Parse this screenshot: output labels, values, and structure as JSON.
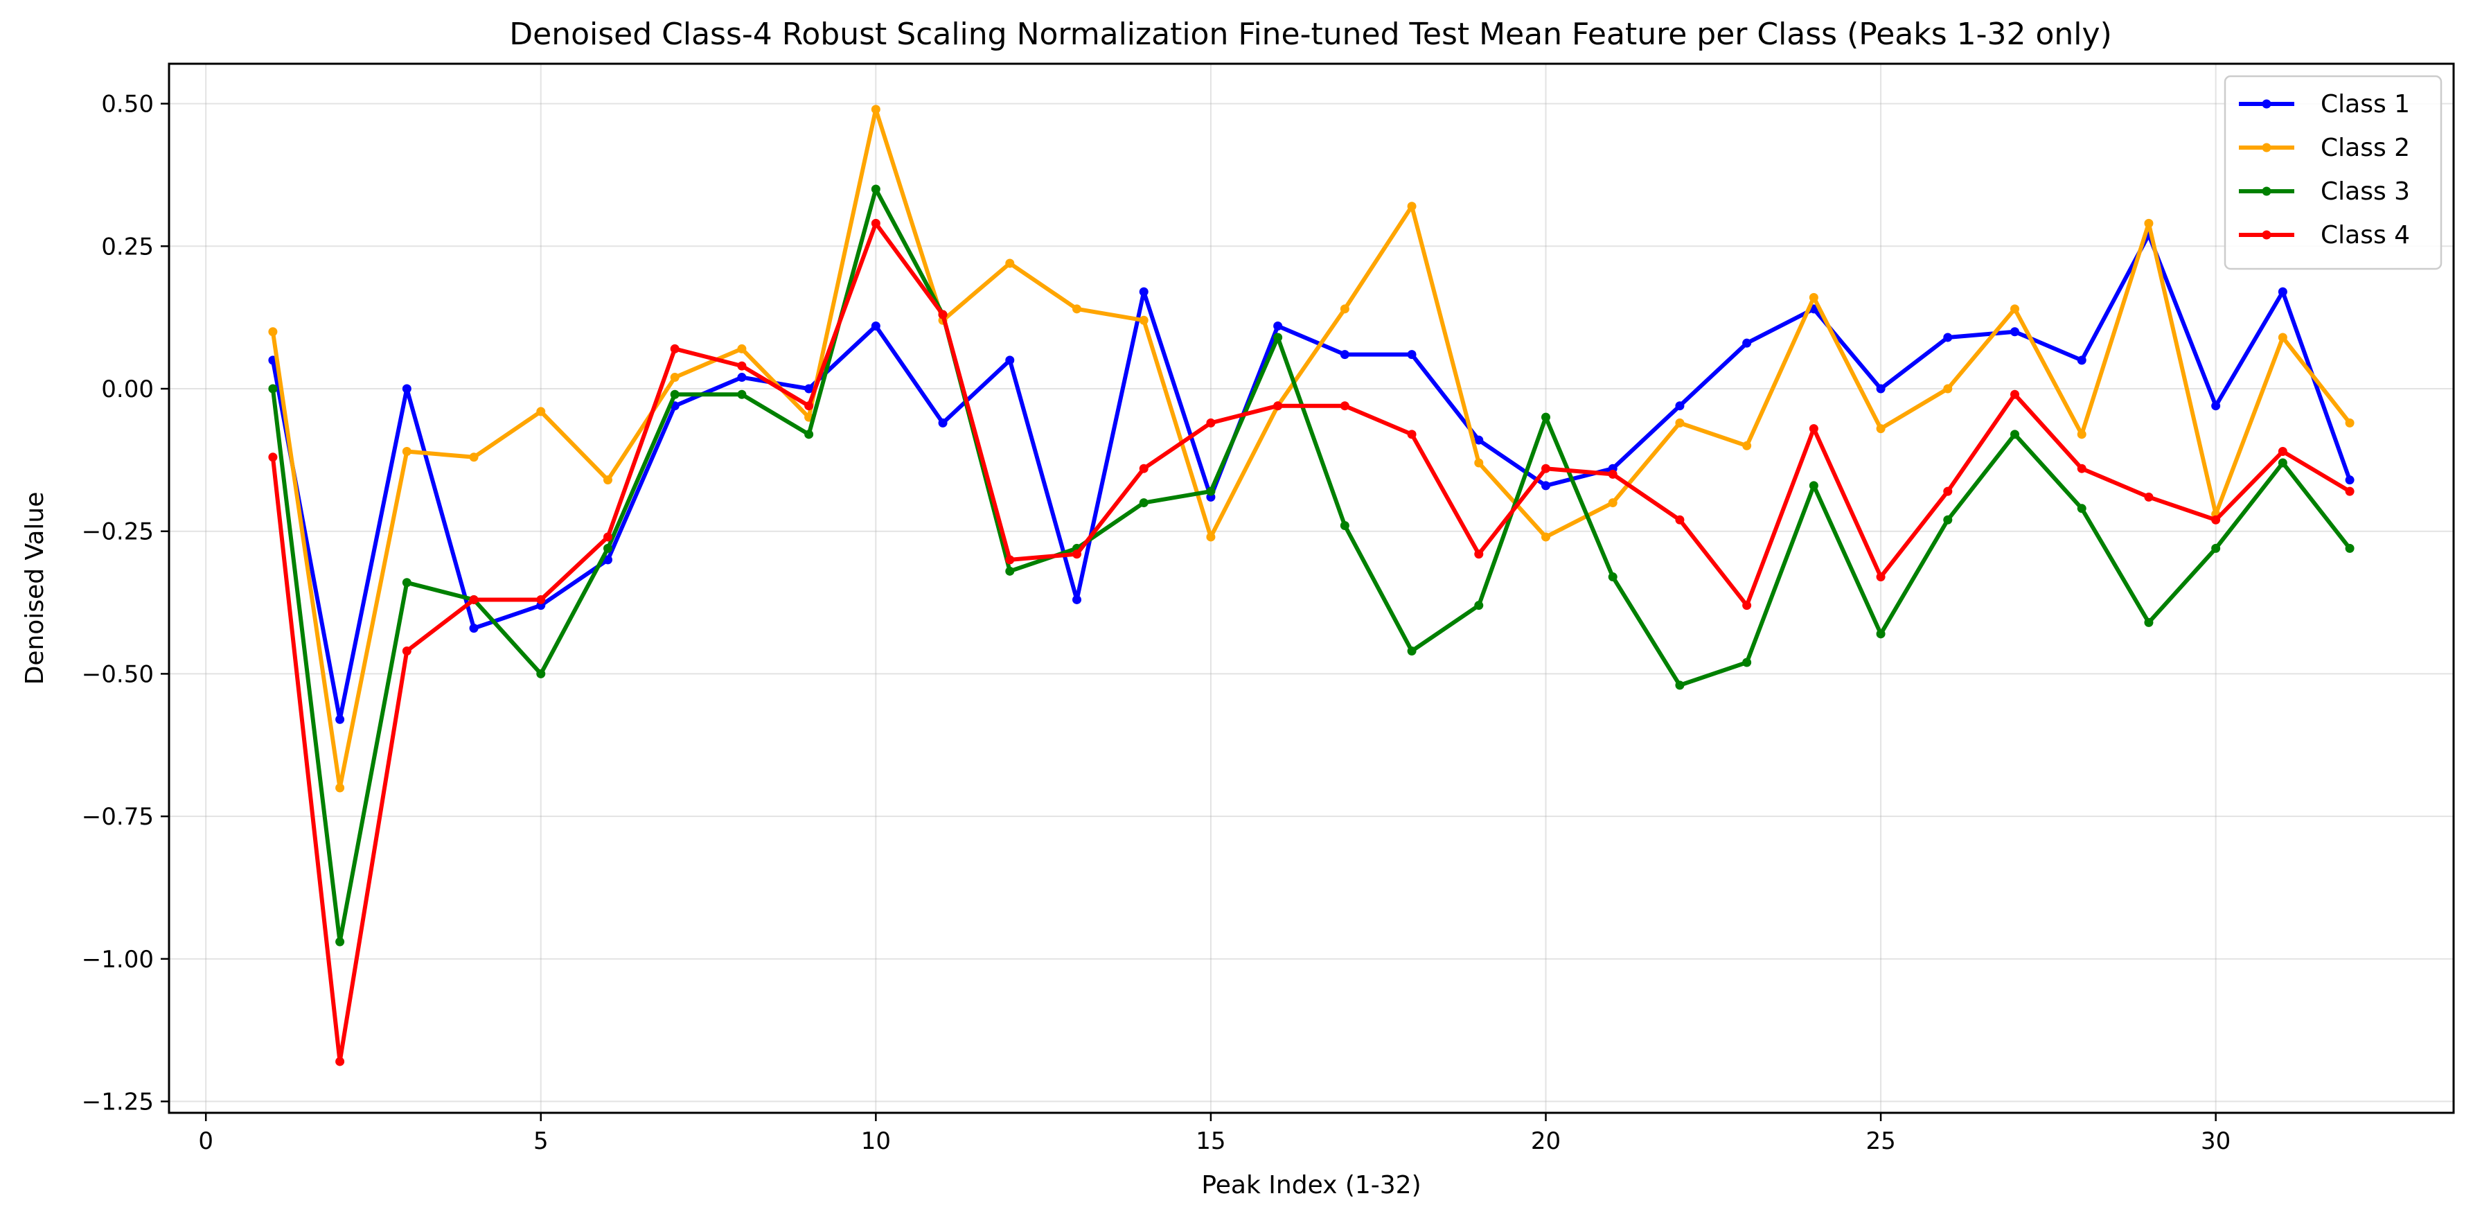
{
  "chart_data": {
    "type": "line",
    "title": "Denoised Class-4 Robust Scaling Normalization Fine-tuned Test Mean Feature per Class (Peaks 1-32 only)",
    "xlabel": "Peak Index (1-32)",
    "ylabel": "Denoised Value",
    "xlim": [
      -0.55,
      33.55
    ],
    "ylim": [
      -1.27,
      0.57
    ],
    "xticks": [
      0,
      5,
      10,
      15,
      20,
      25,
      30
    ],
    "yticks": [
      0.5,
      0.25,
      0.0,
      -0.25,
      -0.5,
      -0.75,
      -1.0,
      -1.25
    ],
    "ytick_labels": [
      "0.50",
      "0.25",
      "0.00",
      "−0.25",
      "−0.50",
      "−0.75",
      "−1.00",
      "−1.25"
    ],
    "grid": true,
    "legend_position": "top-right",
    "x": [
      1,
      2,
      3,
      4,
      5,
      6,
      7,
      8,
      9,
      10,
      11,
      12,
      13,
      14,
      15,
      16,
      17,
      18,
      19,
      20,
      21,
      22,
      23,
      24,
      25,
      26,
      27,
      28,
      29,
      30,
      31,
      32
    ],
    "series": [
      {
        "name": "Class 1",
        "color": "#0000ff",
        "values": [
          0.05,
          -0.58,
          0.0,
          -0.42,
          -0.38,
          -0.3,
          -0.03,
          0.02,
          0.0,
          0.11,
          -0.06,
          0.05,
          -0.37,
          0.17,
          -0.19,
          0.11,
          0.06,
          0.06,
          -0.09,
          -0.17,
          -0.14,
          -0.03,
          0.08,
          0.14,
          0.0,
          0.09,
          0.1,
          0.05,
          0.27,
          -0.03,
          0.17,
          -0.16
        ]
      },
      {
        "name": "Class 2",
        "color": "#ffa500",
        "values": [
          0.1,
          -0.7,
          -0.11,
          -0.12,
          -0.04,
          -0.16,
          0.02,
          0.07,
          -0.05,
          0.49,
          0.12,
          0.22,
          0.14,
          0.12,
          -0.26,
          -0.03,
          0.14,
          0.32,
          -0.13,
          -0.26,
          -0.2,
          -0.06,
          -0.1,
          0.16,
          -0.07,
          0.0,
          0.14,
          -0.08,
          0.29,
          -0.22,
          0.09,
          -0.06
        ]
      },
      {
        "name": "Class 3",
        "color": "#008000",
        "values": [
          0.0,
          -0.97,
          -0.34,
          -0.37,
          -0.5,
          -0.28,
          -0.01,
          -0.01,
          -0.08,
          0.35,
          0.13,
          -0.32,
          -0.28,
          -0.2,
          -0.18,
          0.09,
          -0.24,
          -0.46,
          -0.38,
          -0.05,
          -0.33,
          -0.52,
          -0.48,
          -0.17,
          -0.43,
          -0.23,
          -0.08,
          -0.21,
          -0.41,
          -0.28,
          -0.13,
          -0.28
        ]
      },
      {
        "name": "Class 4",
        "color": "#ff0000",
        "values": [
          -0.12,
          -1.18,
          -0.46,
          -0.37,
          -0.37,
          -0.26,
          0.07,
          0.04,
          -0.03,
          0.29,
          0.13,
          -0.3,
          -0.29,
          -0.14,
          -0.06,
          -0.03,
          -0.03,
          -0.08,
          -0.29,
          -0.14,
          -0.15,
          -0.23,
          -0.38,
          -0.07,
          -0.33,
          -0.18,
          -0.01,
          -0.14,
          -0.19,
          -0.23,
          -0.11,
          -0.18
        ]
      }
    ]
  }
}
